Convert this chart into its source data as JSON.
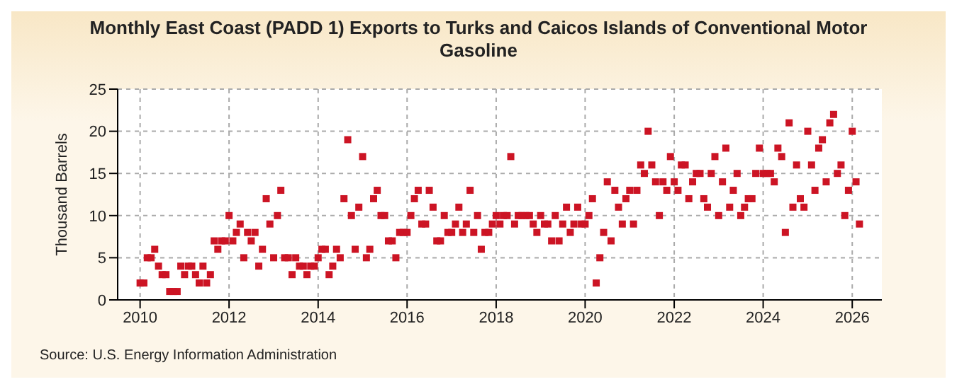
{
  "chart_data": {
    "type": "scatter",
    "title": "Monthly East Coast (PADD 1) Exports to Turks and Caicos Islands of Conventional Motor Gasoline",
    "ylabel": "Thousand Barrels",
    "annotations": [
      "Source: U.S. Energy Information Administration"
    ],
    "x": [
      "2010-01",
      "2010-02",
      "2010-03",
      "2010-04",
      "2010-05",
      "2010-06",
      "2010-07",
      "2010-08",
      "2010-09",
      "2010-10",
      "2010-11",
      "2010-12",
      "2011-01",
      "2011-02",
      "2011-03",
      "2011-04",
      "2011-05",
      "2011-06",
      "2011-07",
      "2011-08",
      "2011-09",
      "2011-10",
      "2011-11",
      "2011-12",
      "2012-01",
      "2012-02",
      "2012-03",
      "2012-04",
      "2012-05",
      "2012-06",
      "2012-07",
      "2012-08",
      "2012-09",
      "2012-10",
      "2012-11",
      "2012-12",
      "2013-01",
      "2013-02",
      "2013-03",
      "2013-04",
      "2013-05",
      "2013-06",
      "2013-07",
      "2013-08",
      "2013-09",
      "2013-10",
      "2013-11",
      "2013-12",
      "2014-01",
      "2014-02",
      "2014-03",
      "2014-04",
      "2014-05",
      "2014-06",
      "2014-07",
      "2014-08",
      "2014-09",
      "2014-10",
      "2014-11",
      "2014-12",
      "2015-01",
      "2015-02",
      "2015-03",
      "2015-04",
      "2015-05",
      "2015-06",
      "2015-07",
      "2015-08",
      "2015-09",
      "2015-10",
      "2015-11",
      "2015-12",
      "2016-01",
      "2016-02",
      "2016-03",
      "2016-04",
      "2016-05",
      "2016-06",
      "2016-07",
      "2016-08",
      "2016-09",
      "2016-10",
      "2016-11",
      "2016-12",
      "2017-01",
      "2017-02",
      "2017-03",
      "2017-04",
      "2017-05",
      "2017-06",
      "2017-07",
      "2017-08",
      "2017-09",
      "2017-10",
      "2017-11",
      "2017-12",
      "2018-01",
      "2018-02",
      "2018-03",
      "2018-04",
      "2018-05",
      "2018-06",
      "2018-07",
      "2018-08",
      "2018-09",
      "2018-10",
      "2018-11",
      "2018-12",
      "2019-01",
      "2019-02",
      "2019-03",
      "2019-04",
      "2019-05",
      "2019-06",
      "2019-07",
      "2019-08",
      "2019-09",
      "2019-10",
      "2019-11",
      "2019-12",
      "2020-01",
      "2020-02",
      "2020-03",
      "2020-04",
      "2020-05",
      "2020-06",
      "2020-07",
      "2020-08",
      "2020-09",
      "2020-10",
      "2020-11",
      "2020-12",
      "2021-01",
      "2021-02",
      "2021-03",
      "2021-04",
      "2021-05",
      "2021-06",
      "2021-07",
      "2021-08",
      "2021-09",
      "2021-10",
      "2021-11",
      "2021-12",
      "2022-01",
      "2022-02",
      "2022-03",
      "2022-04",
      "2022-05",
      "2022-06",
      "2022-07",
      "2022-08",
      "2022-09",
      "2022-10",
      "2022-11",
      "2022-12",
      "2023-01",
      "2023-02",
      "2023-03",
      "2023-04",
      "2023-05",
      "2023-06",
      "2023-07",
      "2023-08",
      "2023-09",
      "2023-10",
      "2023-11",
      "2023-12",
      "2024-01",
      "2024-02",
      "2024-03",
      "2024-04",
      "2024-05",
      "2024-06",
      "2024-07",
      "2024-08",
      "2024-09",
      "2024-10",
      "2024-11",
      "2024-12",
      "2025-01",
      "2025-02",
      "2025-03",
      "2025-04",
      "2025-05",
      "2025-06",
      "2025-07",
      "2025-08",
      "2025-09",
      "2025-10",
      "2025-11",
      "2025-12",
      "2026-01",
      "2026-02",
      "2026-03"
    ],
    "series": [
      {
        "color": "#cc1424",
        "values": [
          2,
          2,
          5,
          5,
          6,
          4,
          3,
          3,
          1,
          1,
          1,
          4,
          3,
          4,
          4,
          3,
          2,
          4,
          2,
          3,
          7,
          6,
          7,
          7,
          10,
          7,
          8,
          9,
          5,
          8,
          7,
          8,
          4,
          6,
          12,
          9,
          5,
          10,
          13,
          5,
          5,
          3,
          5,
          4,
          4,
          3,
          4,
          4,
          5,
          6,
          6,
          3,
          4,
          6,
          5,
          12,
          19,
          10,
          6,
          11,
          17,
          5,
          6,
          12,
          13,
          10,
          10,
          7,
          7,
          5,
          8,
          8,
          8,
          10,
          12,
          13,
          9,
          9,
          13,
          11,
          7,
          7,
          10,
          8,
          8,
          9,
          11,
          8,
          9,
          13,
          8,
          10,
          6,
          8,
          8,
          9,
          10,
          9,
          10,
          10,
          17,
          9,
          10,
          10,
          10,
          10,
          9,
          8,
          10,
          9,
          9,
          7,
          10,
          7,
          9,
          11,
          8,
          9,
          11,
          9,
          9,
          10,
          12,
          2,
          5,
          8,
          14,
          7,
          13,
          11,
          9,
          12,
          13,
          9,
          13,
          16,
          15,
          20,
          16,
          14,
          10,
          14,
          13,
          17,
          14,
          13,
          16,
          16,
          12,
          14,
          15,
          15,
          12,
          11,
          15,
          17,
          10,
          14,
          18,
          11,
          13,
          15,
          10,
          11,
          12,
          12,
          15,
          18,
          15,
          15,
          15,
          14,
          18,
          17,
          8,
          21,
          11,
          16,
          12,
          11,
          20,
          16,
          13,
          18,
          19,
          14,
          21,
          22,
          15,
          16,
          10,
          13,
          20,
          14,
          9
        ]
      }
    ],
    "xlim": [
      "2009-07",
      "2026-09"
    ],
    "xticks": [
      "2010",
      "2012",
      "2014",
      "2016",
      "2018",
      "2020",
      "2022",
      "2024",
      "2026"
    ],
    "ylim": [
      0,
      25
    ],
    "yticks": [
      0,
      5,
      10,
      15,
      20,
      25
    ],
    "grid": true,
    "marker": "square",
    "legend": false
  }
}
